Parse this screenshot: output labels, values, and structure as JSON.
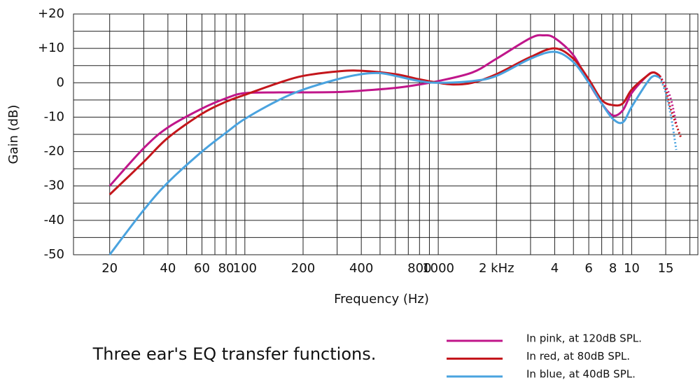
{
  "chart_data": {
    "type": "line",
    "xlabel": "Frequency (Hz)",
    "ylabel": "Gain (dB)",
    "caption": "Three ear's EQ transfer functions.",
    "xscale": "log",
    "xlim": [
      13,
      22000
    ],
    "ylim": [
      -50,
      20
    ],
    "xticks": [
      20,
      40,
      60,
      80,
      100,
      200,
      400,
      800,
      1000,
      {
        "value": 2000,
        "label": "2 kHz"
      },
      {
        "value": 4000,
        "label": "4"
      },
      {
        "value": 6000,
        "label": "6"
      },
      {
        "value": 8000,
        "label": "8"
      },
      {
        "value": 10000,
        "label": "10"
      },
      {
        "value": 15000,
        "label": "15"
      }
    ],
    "xminor": [
      30,
      50,
      70,
      90,
      300,
      500,
      600,
      700,
      900,
      3000,
      5000,
      7000,
      9000,
      20000
    ],
    "yticks": [
      {
        "value": 20,
        "label": "+20"
      },
      {
        "value": 10,
        "label": "+10"
      },
      0,
      -10,
      -20,
      -30,
      -40,
      -50
    ],
    "yminor": [
      15,
      5,
      -5,
      -15,
      -25,
      -35,
      -45
    ],
    "grid": true,
    "series": [
      {
        "name": "In pink, at 120dB SPL.",
        "color": "#c0168a",
        "x": [
          20,
          30,
          40,
          60,
          80,
          100,
          150,
          200,
          300,
          400,
          600,
          800,
          1000,
          1500,
          2000,
          3000,
          3500,
          4000,
          5000,
          6000,
          7000,
          8000,
          9000,
          10000,
          12000,
          13000,
          14000
        ],
        "values": [
          -30,
          -19,
          -13,
          -7.5,
          -4.5,
          -3,
          -2.8,
          -2.8,
          -2.7,
          -2.3,
          -1.5,
          -0.5,
          0.5,
          3,
          7,
          13,
          13.8,
          13,
          8,
          0,
          -6,
          -9.5,
          -8,
          -3,
          2,
          3,
          2
        ]
      },
      {
        "name": "In red, at 80dB SPL.",
        "color": "#c4161c",
        "x": [
          20,
          30,
          40,
          60,
          80,
          100,
          150,
          200,
          300,
          400,
          600,
          800,
          1000,
          1200,
          1500,
          2000,
          3000,
          4000,
          5000,
          6000,
          7000,
          8000,
          9000,
          10000,
          12000,
          13000,
          14000
        ],
        "values": [
          -32.5,
          -23,
          -16,
          -9,
          -5.5,
          -3.5,
          0,
          2,
          3.3,
          3.5,
          2.5,
          1,
          0,
          -0.5,
          0,
          2.5,
          7.5,
          10,
          7,
          1,
          -5,
          -6.5,
          -6,
          -2,
          2,
          3,
          2
        ]
      },
      {
        "name": "In blue, at 40dB SPL.",
        "color": "#4aa3df",
        "x": [
          20,
          30,
          40,
          60,
          80,
          100,
          150,
          200,
          300,
          400,
          500,
          600,
          800,
          1000,
          1500,
          2000,
          3000,
          4000,
          5000,
          6000,
          7000,
          8000,
          9000,
          10000,
          12000,
          13000,
          14000
        ],
        "values": [
          -50,
          -37,
          -29,
          -20,
          -14.5,
          -10.5,
          -5,
          -2,
          1,
          2.5,
          2.8,
          2,
          0.5,
          0,
          0.5,
          2,
          7,
          9,
          6,
          0,
          -6,
          -10.5,
          -11.5,
          -7,
          0,
          2,
          1.5
        ]
      },
      {
        "color": "#c0168a",
        "dash": "dotted",
        "x": [
          14000,
          15000,
          16000,
          17000
        ],
        "values": [
          2,
          -1,
          -5,
          -12
        ]
      },
      {
        "color": "#c4161c",
        "dash": "dotted",
        "x": [
          14000,
          15000,
          16000,
          18000
        ],
        "values": [
          2,
          -2,
          -8,
          -16
        ]
      },
      {
        "color": "#4aa3df",
        "dash": "dotted",
        "x": [
          14000,
          15000,
          16000,
          17000
        ],
        "values": [
          1.5,
          -3,
          -10,
          -19.5
        ]
      }
    ]
  }
}
